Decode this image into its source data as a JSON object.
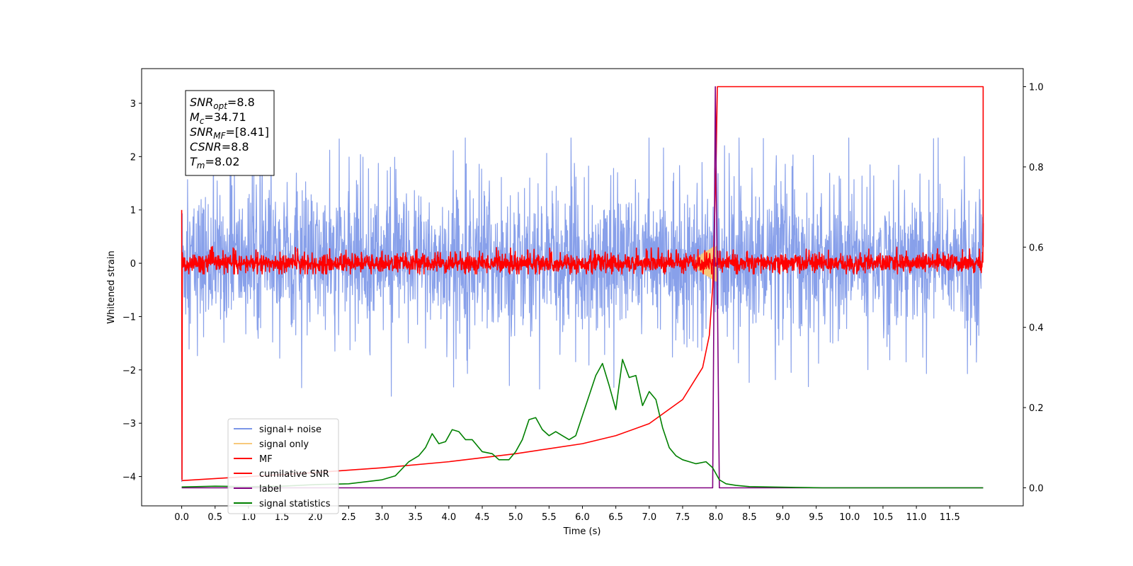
{
  "chart_data": {
    "type": "line",
    "xlabel": "Time (s)",
    "ylabel_left": "Whitened strain",
    "ylabel_right": "",
    "xlim": [
      -0.6,
      12.6
    ],
    "ylim_left": [
      -4.55,
      3.65
    ],
    "ylim_right": [
      -0.045,
      1.045
    ],
    "x_ticks": [
      0.0,
      0.5,
      1.0,
      1.5,
      2.0,
      2.5,
      3.0,
      3.5,
      4.0,
      4.5,
      5.0,
      5.5,
      6.0,
      6.5,
      7.0,
      7.5,
      8.0,
      8.5,
      9.0,
      9.5,
      10.0,
      10.5,
      11.0,
      11.5
    ],
    "x_tick_labels": [
      "0.0",
      "0.5",
      "1.0",
      "1.5",
      "2.0",
      "2.5",
      "3.0",
      "3.5",
      "4.0",
      "4.5",
      "5.0",
      "5.5",
      "6.0",
      "6.5",
      "7.0",
      "7.5",
      "8.0",
      "8.5",
      "9.0",
      "9.5",
      "10.0",
      "10.5",
      "11.0",
      "11.5"
    ],
    "y_ticks_left": [
      -4,
      -3,
      -2,
      -1,
      0,
      1,
      2,
      3
    ],
    "y_tick_labels_left": [
      "−4",
      "−3",
      "−2",
      "−1",
      "0",
      "1",
      "2",
      "3"
    ],
    "y_ticks_right": [
      0.0,
      0.2,
      0.4,
      0.6,
      0.8,
      1.0
    ],
    "y_tick_labels_right": [
      "0.0",
      "0.2",
      "0.4",
      "0.6",
      "0.8",
      "1.0"
    ],
    "grid": false,
    "legend_position": "lower-left",
    "legend": [
      {
        "label": "signal+ noise",
        "color": "#7b96e8"
      },
      {
        "label": "signal only",
        "color": "#f7c97b"
      },
      {
        "label": "MF",
        "color": "#ff0000"
      },
      {
        "label": "cumilative SNR",
        "color": "#ff0000"
      },
      {
        "label": "label",
        "color": "#800080"
      },
      {
        "label": "signal statistics",
        "color": "#008000"
      }
    ],
    "annotation": {
      "lines": [
        {
          "sym": "SNR",
          "sub": "opt",
          "text": "=8.8"
        },
        {
          "sym": "M",
          "sub": "c",
          "text": "=34.71"
        },
        {
          "sym": "SNR",
          "sub": "MF",
          "text": "=[8.41]"
        },
        {
          "sym": "CSNR",
          "sub": "",
          "text": "=8.8"
        },
        {
          "sym": "T",
          "sub": "m",
          "text": "=8.02"
        }
      ]
    },
    "series": [
      {
        "name": "signal+ noise",
        "axis": "left",
        "color": "#7b96e8",
        "style": "noise",
        "x_range": [
          0.0,
          12.0
        ],
        "envelope": {
          "upper": 1.2,
          "lower": -1.1,
          "peak_max": 2.35,
          "peak_min": -2.5
        }
      },
      {
        "name": "signal only",
        "axis": "left",
        "color": "#f7c97b",
        "style": "chirp",
        "x_range": [
          7.7,
          8.02
        ],
        "amplitude": 0.35
      },
      {
        "name": "MF",
        "axis": "left",
        "color": "#ff0000",
        "style": "noise",
        "x_range": [
          0.0,
          12.0
        ],
        "envelope": {
          "upper": 0.15,
          "lower": -0.15,
          "peak_max": 0.5,
          "peak_min": -0.2
        }
      },
      {
        "name": "cumilative SNR",
        "axis": "right",
        "color": "#ff0000",
        "x": [
          0.0,
          1.0,
          2.0,
          3.0,
          4.0,
          5.0,
          6.0,
          6.5,
          7.0,
          7.5,
          7.8,
          7.9,
          7.95,
          8.0,
          8.02,
          12.0,
          12.0
        ],
        "y": [
          0.018,
          0.028,
          0.038,
          0.05,
          0.065,
          0.085,
          0.11,
          0.13,
          0.16,
          0.22,
          0.3,
          0.38,
          0.5,
          0.8,
          1.0,
          1.0,
          0.6
        ]
      },
      {
        "name": "label",
        "axis": "right",
        "color": "#800080",
        "x": [
          0.0,
          7.95,
          7.99,
          8.05,
          12.0
        ],
        "y": [
          0.0,
          0.0,
          1.0,
          0.0,
          0.0
        ]
      },
      {
        "name": "signal statistics",
        "axis": "right",
        "color": "#008000",
        "x": [
          0.0,
          0.5,
          1.0,
          1.5,
          2.0,
          2.5,
          3.0,
          3.2,
          3.4,
          3.55,
          3.65,
          3.75,
          3.85,
          3.95,
          4.05,
          4.15,
          4.25,
          4.35,
          4.5,
          4.65,
          4.75,
          4.9,
          5.0,
          5.1,
          5.2,
          5.3,
          5.4,
          5.5,
          5.6,
          5.7,
          5.8,
          5.9,
          6.0,
          6.1,
          6.2,
          6.3,
          6.4,
          6.5,
          6.6,
          6.7,
          6.8,
          6.9,
          7.0,
          7.1,
          7.2,
          7.3,
          7.4,
          7.5,
          7.6,
          7.7,
          7.85,
          7.95,
          8.05,
          8.15,
          8.3,
          8.5,
          8.8,
          9.2,
          9.6,
          10.0,
          11.0,
          12.0
        ],
        "y": [
          0.002,
          0.004,
          0.003,
          0.004,
          0.008,
          0.01,
          0.02,
          0.03,
          0.065,
          0.08,
          0.1,
          0.135,
          0.11,
          0.115,
          0.145,
          0.14,
          0.12,
          0.12,
          0.09,
          0.085,
          0.07,
          0.07,
          0.09,
          0.12,
          0.17,
          0.175,
          0.145,
          0.13,
          0.14,
          0.13,
          0.12,
          0.13,
          0.18,
          0.23,
          0.28,
          0.31,
          0.255,
          0.195,
          0.32,
          0.275,
          0.28,
          0.205,
          0.24,
          0.22,
          0.15,
          0.1,
          0.08,
          0.07,
          0.065,
          0.06,
          0.065,
          0.05,
          0.02,
          0.01,
          0.006,
          0.003,
          0.002,
          0.001,
          0.0,
          0.0,
          0.0,
          0.0
        ]
      }
    ]
  }
}
